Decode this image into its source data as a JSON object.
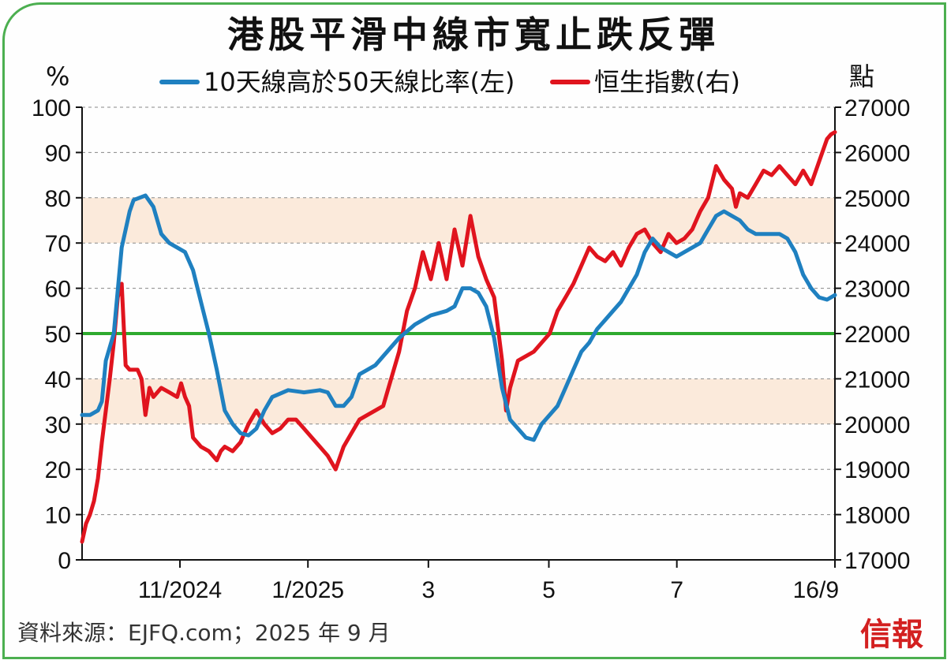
{
  "chart_data": {
    "type": "line",
    "title": "港股平滑中線市寬止跌反彈",
    "left_unit": "%",
    "right_unit": "點",
    "left_axis": {
      "min": 0,
      "max": 100,
      "ticks": [
        0,
        10,
        20,
        30,
        40,
        50,
        60,
        70,
        80,
        90,
        100
      ]
    },
    "right_axis": {
      "min": 17000,
      "max": 27000,
      "ticks": [
        17000,
        18000,
        19000,
        20000,
        21000,
        22000,
        23000,
        24000,
        25000,
        26000,
        27000
      ]
    },
    "x_tick_labels": [
      "11/2024",
      "1/2025",
      "3",
      "5",
      "7",
      "16/9"
    ],
    "x_tick_positions": [
      0.13,
      0.3,
      0.46,
      0.62,
      0.79,
      1.0
    ],
    "shaded_bands_left": [
      [
        30,
        40
      ],
      [
        70,
        80
      ]
    ],
    "reference_line_left": 50,
    "grid": "horizontal-dashed",
    "legend_position": "top",
    "colors": {
      "breadth": "#1f80c0",
      "hsi": "#e0141e",
      "reference": "#2eaa2e",
      "band": "#fbeadb",
      "grid": "#888888"
    },
    "series": [
      {
        "name": "10天線高於50天線比率(左)",
        "axis": "left",
        "points": [
          [
            0,
            32
          ],
          [
            0.01,
            32
          ],
          [
            0.02,
            33
          ],
          [
            0.025,
            35
          ],
          [
            0.03,
            44
          ],
          [
            0.04,
            50
          ],
          [
            0.05,
            69
          ],
          [
            0.06,
            77
          ],
          [
            0.065,
            79.5
          ],
          [
            0.08,
            80.5
          ],
          [
            0.09,
            78
          ],
          [
            0.1,
            72
          ],
          [
            0.11,
            70
          ],
          [
            0.12,
            69
          ],
          [
            0.13,
            68
          ],
          [
            0.14,
            64
          ],
          [
            0.15,
            57
          ],
          [
            0.16,
            50
          ],
          [
            0.17,
            42
          ],
          [
            0.18,
            33
          ],
          [
            0.19,
            30
          ],
          [
            0.2,
            28
          ],
          [
            0.21,
            27.5
          ],
          [
            0.22,
            29
          ],
          [
            0.23,
            33
          ],
          [
            0.24,
            36
          ],
          [
            0.26,
            37.5
          ],
          [
            0.28,
            37
          ],
          [
            0.3,
            37.5
          ],
          [
            0.31,
            37
          ],
          [
            0.32,
            34
          ],
          [
            0.33,
            34
          ],
          [
            0.34,
            36
          ],
          [
            0.35,
            41
          ],
          [
            0.37,
            43
          ],
          [
            0.38,
            45
          ],
          [
            0.4,
            49
          ],
          [
            0.42,
            52
          ],
          [
            0.44,
            54
          ],
          [
            0.46,
            55
          ],
          [
            0.47,
            56
          ],
          [
            0.48,
            60
          ],
          [
            0.49,
            60
          ],
          [
            0.5,
            59
          ],
          [
            0.51,
            56
          ],
          [
            0.52,
            49
          ],
          [
            0.53,
            38
          ],
          [
            0.54,
            31
          ],
          [
            0.56,
            27
          ],
          [
            0.57,
            26.5
          ],
          [
            0.58,
            30
          ],
          [
            0.6,
            34
          ],
          [
            0.61,
            38
          ],
          [
            0.62,
            42
          ],
          [
            0.63,
            46
          ],
          [
            0.64,
            48
          ],
          [
            0.65,
            51
          ],
          [
            0.66,
            53
          ],
          [
            0.67,
            55
          ],
          [
            0.68,
            57
          ],
          [
            0.7,
            63
          ],
          [
            0.71,
            68
          ],
          [
            0.72,
            71
          ],
          [
            0.73,
            69
          ],
          [
            0.74,
            68
          ],
          [
            0.75,
            67
          ],
          [
            0.76,
            68
          ],
          [
            0.78,
            70
          ],
          [
            0.79,
            73
          ],
          [
            0.8,
            76
          ],
          [
            0.81,
            77
          ],
          [
            0.82,
            76
          ],
          [
            0.83,
            75
          ],
          [
            0.84,
            73
          ],
          [
            0.85,
            72
          ],
          [
            0.87,
            72
          ],
          [
            0.88,
            72
          ],
          [
            0.89,
            71
          ],
          [
            0.9,
            68
          ],
          [
            0.91,
            63
          ],
          [
            0.92,
            60
          ],
          [
            0.93,
            58
          ],
          [
            0.94,
            57.5
          ],
          [
            0.95,
            58.5
          ]
        ]
      },
      {
        "name": "恒生指數(右)",
        "axis": "right",
        "points": [
          [
            0,
            17400
          ],
          [
            0.005,
            17800
          ],
          [
            0.01,
            18000
          ],
          [
            0.015,
            18300
          ],
          [
            0.02,
            18800
          ],
          [
            0.025,
            19600
          ],
          [
            0.03,
            20300
          ],
          [
            0.035,
            21000
          ],
          [
            0.04,
            21800
          ],
          [
            0.045,
            22800
          ],
          [
            0.05,
            23100
          ],
          [
            0.055,
            21300
          ],
          [
            0.06,
            21200
          ],
          [
            0.07,
            21200
          ],
          [
            0.075,
            21000
          ],
          [
            0.08,
            20200
          ],
          [
            0.085,
            20800
          ],
          [
            0.09,
            20600
          ],
          [
            0.1,
            20800
          ],
          [
            0.11,
            20700
          ],
          [
            0.12,
            20600
          ],
          [
            0.125,
            20900
          ],
          [
            0.13,
            20600
          ],
          [
            0.135,
            20400
          ],
          [
            0.14,
            19700
          ],
          [
            0.15,
            19500
          ],
          [
            0.16,
            19400
          ],
          [
            0.17,
            19200
          ],
          [
            0.175,
            19400
          ],
          [
            0.18,
            19500
          ],
          [
            0.19,
            19400
          ],
          [
            0.2,
            19600
          ],
          [
            0.21,
            20000
          ],
          [
            0.22,
            20300
          ],
          [
            0.23,
            20000
          ],
          [
            0.24,
            19800
          ],
          [
            0.25,
            19900
          ],
          [
            0.26,
            20100
          ],
          [
            0.27,
            20100
          ],
          [
            0.28,
            19900
          ],
          [
            0.29,
            19700
          ],
          [
            0.3,
            19500
          ],
          [
            0.31,
            19300
          ],
          [
            0.32,
            19000
          ],
          [
            0.33,
            19500
          ],
          [
            0.34,
            19800
          ],
          [
            0.35,
            20100
          ],
          [
            0.36,
            20200
          ],
          [
            0.37,
            20300
          ],
          [
            0.38,
            20400
          ],
          [
            0.39,
            21000
          ],
          [
            0.4,
            21600
          ],
          [
            0.41,
            22500
          ],
          [
            0.42,
            23000
          ],
          [
            0.43,
            23800
          ],
          [
            0.44,
            23200
          ],
          [
            0.45,
            24000
          ],
          [
            0.46,
            23200
          ],
          [
            0.47,
            24300
          ],
          [
            0.48,
            23500
          ],
          [
            0.49,
            24600
          ],
          [
            0.5,
            23700
          ],
          [
            0.51,
            23200
          ],
          [
            0.52,
            22800
          ],
          [
            0.53,
            21400
          ],
          [
            0.535,
            20300
          ],
          [
            0.54,
            20800
          ],
          [
            0.55,
            21400
          ],
          [
            0.56,
            21500
          ],
          [
            0.57,
            21600
          ],
          [
            0.58,
            21800
          ],
          [
            0.59,
            22000
          ],
          [
            0.6,
            22500
          ],
          [
            0.61,
            22800
          ],
          [
            0.62,
            23100
          ],
          [
            0.63,
            23500
          ],
          [
            0.64,
            23900
          ],
          [
            0.65,
            23700
          ],
          [
            0.66,
            23600
          ],
          [
            0.67,
            23800
          ],
          [
            0.68,
            23500
          ],
          [
            0.69,
            23900
          ],
          [
            0.7,
            24200
          ],
          [
            0.71,
            24300
          ],
          [
            0.72,
            24000
          ],
          [
            0.73,
            23800
          ],
          [
            0.74,
            24200
          ],
          [
            0.75,
            24000
          ],
          [
            0.76,
            24100
          ],
          [
            0.77,
            24300
          ],
          [
            0.78,
            24700
          ],
          [
            0.79,
            25000
          ],
          [
            0.8,
            25700
          ],
          [
            0.81,
            25400
          ],
          [
            0.82,
            25200
          ],
          [
            0.825,
            24800
          ],
          [
            0.83,
            25100
          ],
          [
            0.84,
            25000
          ],
          [
            0.85,
            25300
          ],
          [
            0.86,
            25600
          ],
          [
            0.87,
            25500
          ],
          [
            0.88,
            25700
          ],
          [
            0.89,
            25500
          ],
          [
            0.9,
            25300
          ],
          [
            0.91,
            25600
          ],
          [
            0.92,
            25300
          ],
          [
            0.93,
            25800
          ],
          [
            0.94,
            26300
          ],
          [
            0.945,
            26400
          ],
          [
            0.95,
            26450
          ]
        ]
      }
    ]
  },
  "source_text": "資料來源：EJFQ.com；2025 年 9 月",
  "brand_text": "信報"
}
